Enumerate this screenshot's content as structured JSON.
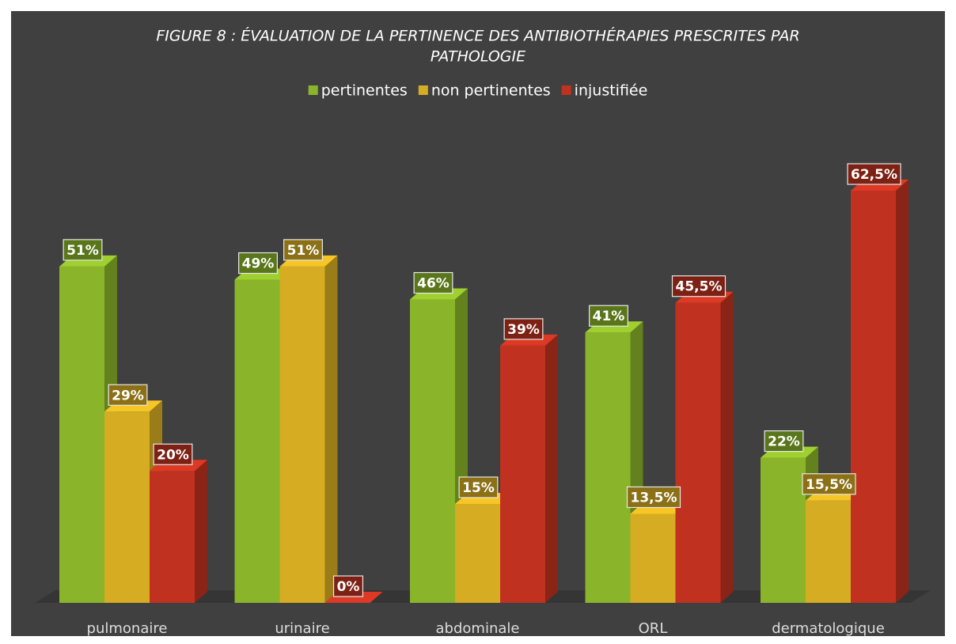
{
  "chart_data": {
    "type": "bar3d",
    "title": "FIGURE 8 : ÉVALUATION DE LA PERTINENCE DES ANTIBIOTHÉRAPIES PRESCRITES PAR",
    "title_line2": "PATHOLOGIE",
    "categories": [
      "pulmonaire",
      "urinaire",
      "abdominale",
      "ORL",
      "dermatologique"
    ],
    "series": [
      {
        "name": "pertinentes",
        "color": "#8ab52a",
        "values": [
          51,
          49,
          46,
          41,
          22
        ],
        "value_labels": [
          "51%",
          "49%",
          "46%",
          "41%",
          "22%"
        ]
      },
      {
        "name": "non pertinentes",
        "color": "#d6ac22",
        "values": [
          29,
          51,
          15,
          13.5,
          15.5
        ],
        "value_labels": [
          "29%",
          "51%",
          "15%",
          "13,5%",
          "15,5%"
        ]
      },
      {
        "name": "injustifiée",
        "color": "#c0321f",
        "values": [
          20,
          0,
          39,
          45.5,
          62.5
        ],
        "value_labels": [
          "20%",
          "0%",
          "39%",
          "45,5%",
          "62,5%"
        ]
      }
    ],
    "legend": "top"
  }
}
